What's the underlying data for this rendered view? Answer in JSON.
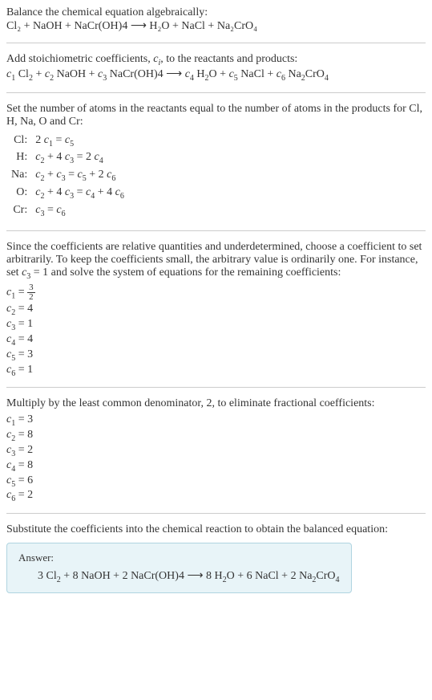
{
  "intro": {
    "line1": "Balance the chemical equation algebraically:",
    "equation": "Cl₂ + NaOH + NaCr(OH)4  ⟶  H₂O + NaCl + Na₂CrO₄"
  },
  "stoich": {
    "text": "Add stoichiometric coefficients, cᵢ, to the reactants and products:",
    "equation": "c₁ Cl₂ + c₂ NaOH + c₃ NaCr(OH)4  ⟶  c₄ H₂O + c₅ NaCl + c₆ Na₂CrO₄"
  },
  "atoms": {
    "text": "Set the number of atoms in the reactants equal to the number of atoms in the products for Cl, H, Na, O and Cr:",
    "rows": [
      {
        "el": "Cl:",
        "eq": "2 c₁ = c₅"
      },
      {
        "el": "H:",
        "eq": "c₂ + 4 c₃ = 2 c₄"
      },
      {
        "el": "Na:",
        "eq": "c₂ + c₃ = c₅ + 2 c₆"
      },
      {
        "el": "O:",
        "eq": "c₂ + 4 c₃ = c₄ + 4 c₆"
      },
      {
        "el": "Cr:",
        "eq": "c₃ = c₆"
      }
    ]
  },
  "since": {
    "text": "Since the coefficients are relative quantities and underdetermined, choose a coefficient to set arbitrarily. To keep the coefficients small, the arbitrary value is ordinarily one. For instance, set c₃ = 1 and solve the system of equations for the remaining coefficients:",
    "coefs": {
      "c1_label": "c₁ = ",
      "c1_num": "3",
      "c1_den": "2",
      "c2": "c₂ = 4",
      "c3": "c₃ = 1",
      "c4": "c₄ = 4",
      "c5": "c₅ = 3",
      "c6": "c₆ = 1"
    }
  },
  "multiply": {
    "text": "Multiply by the least common denominator, 2, to eliminate fractional coefficients:",
    "coefs": {
      "c1": "c₁ = 3",
      "c2": "c₂ = 8",
      "c3": "c₃ = 2",
      "c4": "c₄ = 8",
      "c5": "c₅ = 6",
      "c6": "c₆ = 2"
    }
  },
  "substitute": {
    "text": "Substitute the coefficients into the chemical reaction to obtain the balanced equation:"
  },
  "answer": {
    "label": "Answer:",
    "equation": "3 Cl₂ + 8 NaOH + 2 NaCr(OH)4  ⟶  8 H₂O + 6 NaCl + 2 Na₂CrO₄"
  },
  "colors": {
    "text": "#333333",
    "hr": "#cccccc",
    "answer_bg": "#e8f4f8",
    "answer_border": "#b0d4e0"
  }
}
